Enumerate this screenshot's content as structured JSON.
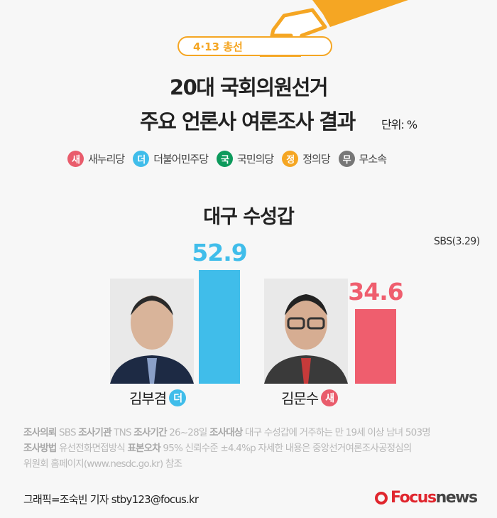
{
  "header": {
    "badge": "4·13 총선",
    "title_line1": "20대 국회의원선거",
    "title_line2": "주요 언론사 여론조사 결과",
    "unit": "단위: %"
  },
  "legend": [
    {
      "glyph": "새",
      "label": "새누리당",
      "color": "#e95c6c"
    },
    {
      "glyph": "더",
      "label": "더불어민주당",
      "color": "#40bdea"
    },
    {
      "glyph": "국",
      "label": "국민의당",
      "color": "#0d9a5c"
    },
    {
      "glyph": "정",
      "label": "정의당",
      "color": "#f5a623"
    },
    {
      "glyph": "무",
      "label": "무소속",
      "color": "#777777"
    }
  ],
  "region": "대구 수성갑",
  "source": "SBS(3.29)",
  "chart_data": {
    "type": "bar",
    "categories": [
      "김부겸",
      "김문수"
    ],
    "values": [
      52.9,
      34.6
    ],
    "value_labels": [
      "52.9",
      "34.6"
    ],
    "parties": [
      "더",
      "새"
    ],
    "colors": [
      "#40bdea",
      "#ef5e6e"
    ],
    "ylim": [
      0,
      60
    ]
  },
  "notes": {
    "line1": [
      {
        "b": "조사의뢰"
      },
      {
        "t": " SBS "
      },
      {
        "b": "조사기관"
      },
      {
        "t": " TNS "
      },
      {
        "b": "조사기간"
      },
      {
        "t": " 26~28일 "
      },
      {
        "b": "조사대상"
      },
      {
        "t": " 대구 수성갑에 거주하는 만 19세 이상 남녀 503명"
      }
    ],
    "line2": [
      {
        "b": "조사방법"
      },
      {
        "t": " 유선전화면접방식 "
      },
      {
        "b": "표본오차"
      },
      {
        "t": " 95% 신뢰수준 ±4.4%p 자세한 내용은 중앙선거여론조사공정심의"
      }
    ],
    "line3": [
      {
        "t": "위원회 홈페이지(www.nesdc.go.kr) 참조"
      }
    ]
  },
  "credit": "그래픽=조숙빈 기자 stby123@focus.kr",
  "logo": {
    "focus": "Focus",
    "news": "news"
  }
}
